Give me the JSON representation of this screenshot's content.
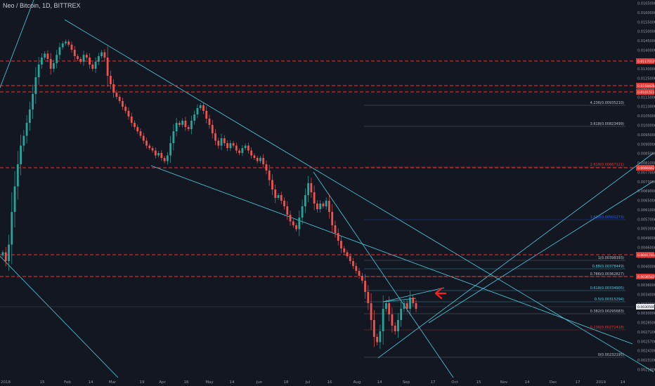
{
  "header": {
    "title": "Neo / Bitcoin, 1D, BITTREX"
  },
  "colors": {
    "background": "#131722",
    "up": "#26a69a",
    "down": "#ef5350",
    "cyan_line": "#4dd0e1",
    "red_level": "#e53935",
    "fib_text": "#9598a1",
    "axis_text": "#9598a1",
    "arrow": "#ff1e1e"
  },
  "chart_data": {
    "type": "candlestick",
    "title": "Neo / Bitcoin, 1D, BITTREX",
    "x_axis_labels": [
      "2018",
      "15",
      "Feb",
      "14",
      "Mar",
      "19",
      "Apr",
      "16",
      "May",
      "14",
      "Jun",
      "18",
      "Jul",
      "16",
      "Aug",
      "14",
      "Sep",
      "17",
      "Oct",
      "15",
      "Nov",
      "14",
      "Dec",
      "17",
      "2019",
      "14"
    ],
    "y_axis_labels": [
      "0.01650000",
      "0.01600000",
      "0.01550000",
      "0.01500000",
      "0.01450000",
      "0.01400000",
      "0.01350000",
      "0.01300000",
      "0.01250000",
      "0.01200000",
      "0.01150000",
      "0.01100000",
      "0.01050000",
      "0.01000000",
      "0.00950000",
      "0.00900000",
      "0.00850000",
      "0.00810000",
      "0.00770000",
      "0.00730000",
      "0.00690000",
      "0.00650000",
      "0.00610000",
      "0.00570000",
      "0.00530000",
      "0.00490000",
      "0.00460000",
      "0.00430000",
      "0.00400000",
      "0.00380000",
      "0.00360000",
      "0.00340000",
      "0.00320000",
      "0.00300000",
      "0.00285000",
      "0.00271000",
      "0.00257000",
      "0.00243000",
      "0.00231000",
      "0.00219000"
    ],
    "price_tags": [
      {
        "label": "0.01170100"
      },
      {
        "label": "0.01044281"
      },
      {
        "label": "0.01015116"
      },
      {
        "label": "0.00666622"
      },
      {
        "label": "0.00417430"
      },
      {
        "label": "0.00365432"
      },
      {
        "label": "0.00305000"
      }
    ],
    "fib_levels": [
      {
        "label": "4.236(0.00935210)"
      },
      {
        "label": "3.618(0.00823499)"
      },
      {
        "label": "2.618(0.00667121)"
      },
      {
        "label": "1.618(0.00501273)"
      },
      {
        "label": "1(0.00398393)"
      },
      {
        "label": "0.88(0.00378449)"
      },
      {
        "label": "0.786(0.00362827)"
      },
      {
        "label": "0.618(0.00334905)"
      },
      {
        "label": "0.5(0.00315294)"
      },
      {
        "label": "0.382(0.00295683)"
      },
      {
        "label": "0.236(0.00271418)"
      },
      {
        "label": "0(0.00232195)"
      }
    ],
    "series": [
      {
        "name": "candles_close",
        "values": [
          0.0041,
          0.0039,
          0.0043,
          0.0052,
          0.0061,
          0.0068,
          0.0075,
          0.0079,
          0.0085,
          0.0092,
          0.0103,
          0.0115,
          0.0124,
          0.0129,
          0.0132,
          0.0128,
          0.0121,
          0.0125,
          0.0131,
          0.0137,
          0.014,
          0.0143,
          0.0139,
          0.0135,
          0.013,
          0.0128,
          0.0126,
          0.0131,
          0.0129,
          0.0124,
          0.0121,
          0.0126,
          0.013,
          0.0133,
          0.0129,
          0.0116,
          0.011,
          0.0104,
          0.0101,
          0.0098,
          0.0094,
          0.0091,
          0.0088,
          0.0085,
          0.0083,
          0.0081,
          0.0079,
          0.0077,
          0.0075,
          0.0074,
          0.0073,
          0.0071,
          0.0072,
          0.007,
          0.0069,
          0.0071,
          0.0076,
          0.0081,
          0.0085,
          0.0084,
          0.0086,
          0.0083,
          0.0082,
          0.0086,
          0.0089,
          0.0093,
          0.0095,
          0.0091,
          0.0087,
          0.0084,
          0.008,
          0.0077,
          0.0075,
          0.0078,
          0.0076,
          0.0074,
          0.0076,
          0.0075,
          0.0073,
          0.0072,
          0.0074,
          0.0075,
          0.0073,
          0.0071,
          0.007,
          0.0069,
          0.007,
          0.0068,
          0.0066,
          0.0063,
          0.006,
          0.0057,
          0.0058,
          0.0056,
          0.0054,
          0.0051,
          0.0049,
          0.0048,
          0.0047,
          0.005,
          0.0054,
          0.0058,
          0.0062,
          0.0059,
          0.0055,
          0.0053,
          0.0055,
          0.0054,
          0.0056,
          0.0052,
          0.0048,
          0.0046,
          0.0044,
          0.0042,
          0.0041,
          0.004,
          0.0039,
          0.0038,
          0.0037,
          0.0036,
          0.0035,
          0.0033,
          0.0031,
          0.0028,
          0.0025,
          0.0024,
          0.0026,
          0.003,
          0.0031,
          0.0029,
          0.0027,
          0.0026,
          0.0028,
          0.003,
          0.0031,
          0.003,
          0.0032,
          0.0031,
          0.003
        ]
      }
    ]
  }
}
